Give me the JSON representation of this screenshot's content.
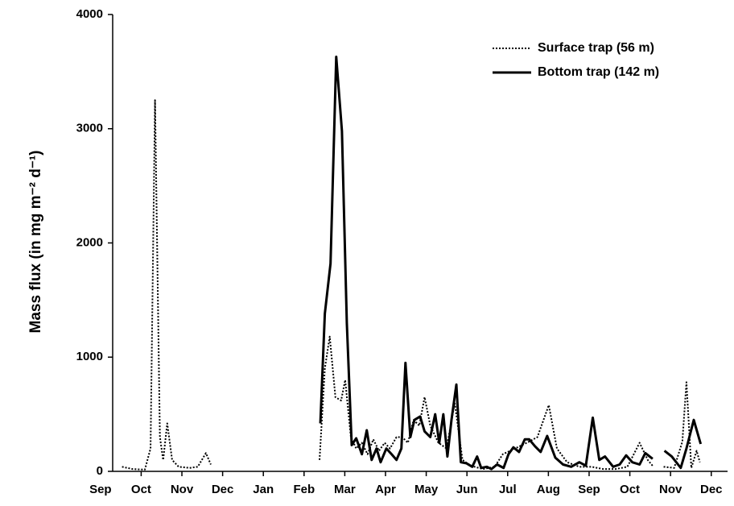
{
  "chart_data": {
    "type": "line",
    "ylabel": "Mass flux (in mg m⁻² d⁻¹)",
    "xlim": [
      0.3,
      15.4
    ],
    "xticks": [
      {
        "value": 0,
        "label": "Sep"
      },
      {
        "value": 1,
        "label": "Oct"
      },
      {
        "value": 2,
        "label": "Nov"
      },
      {
        "value": 3,
        "label": "Dec"
      },
      {
        "value": 4,
        "label": "Jan"
      },
      {
        "value": 5,
        "label": "Feb"
      },
      {
        "value": 6,
        "label": "Mar"
      },
      {
        "value": 7,
        "label": "Apr"
      },
      {
        "value": 8,
        "label": "May"
      },
      {
        "value": 9,
        "label": "Jun"
      },
      {
        "value": 10,
        "label": "Jul"
      },
      {
        "value": 11,
        "label": "Aug"
      },
      {
        "value": 12,
        "label": "Sep"
      },
      {
        "value": 13,
        "label": "Oct"
      },
      {
        "value": 14,
        "label": "Nov"
      },
      {
        "value": 15,
        "label": "Dec"
      }
    ],
    "ylim": [
      0,
      4000
    ],
    "yticks": [
      0,
      1000,
      2000,
      3000,
      4000
    ],
    "legend": "top-right",
    "series": [
      {
        "name": "Surface trap (56 m)",
        "color": "#000000",
        "style": "dotted",
        "x": [
          0.53,
          0.79,
          1.09,
          1.23,
          1.34,
          1.46,
          1.54,
          1.64,
          1.76,
          1.92,
          2.19,
          2.39,
          2.59,
          2.71,
          null,
          5.38,
          5.51,
          5.63,
          5.77,
          5.91,
          6.01,
          6.15,
          6.28,
          6.42,
          6.56,
          6.7,
          6.84,
          6.98,
          7.11,
          7.27,
          7.41,
          7.55,
          7.69,
          7.83,
          7.96,
          8.1,
          8.3,
          8.5,
          8.7,
          8.89,
          9.09,
          9.39,
          9.68,
          9.88,
          10.18,
          10.47,
          10.73,
          11.01,
          11.21,
          11.46,
          11.76,
          12.06,
          12.35,
          12.65,
          12.94,
          13.24,
          13.44,
          13.58,
          null,
          13.83,
          14.09,
          14.29,
          14.39,
          14.51,
          14.64,
          14.72
        ],
        "values": [
          40,
          20,
          15,
          200,
          3250,
          300,
          100,
          420,
          100,
          40,
          30,
          40,
          160,
          60,
          null,
          100,
          900,
          1180,
          650,
          620,
          800,
          300,
          200,
          250,
          150,
          280,
          180,
          250,
          200,
          300,
          300,
          250,
          450,
          400,
          650,
          400,
          250,
          200,
          600,
          100,
          50,
          20,
          40,
          150,
          200,
          250,
          300,
          580,
          200,
          80,
          40,
          40,
          20,
          20,
          40,
          250,
          100,
          40,
          null,
          40,
          30,
          260,
          780,
          30,
          180,
          80
        ]
      },
      {
        "name": "Bottom trap (142 m)",
        "color": "#000000",
        "style": "solid",
        "x": [
          5.4,
          5.51,
          5.65,
          5.79,
          5.93,
          6.05,
          6.17,
          6.28,
          6.42,
          6.54,
          6.66,
          6.78,
          6.88,
          7.02,
          7.15,
          7.27,
          7.39,
          7.49,
          7.61,
          7.71,
          7.85,
          7.96,
          8.1,
          8.22,
          8.32,
          8.42,
          8.52,
          8.62,
          8.74,
          8.85,
          8.99,
          9.13,
          9.25,
          9.35,
          9.49,
          9.6,
          9.74,
          9.9,
          10.02,
          10.14,
          10.28,
          10.42,
          10.53,
          10.67,
          10.81,
          10.97,
          11.17,
          11.36,
          11.56,
          11.76,
          11.92,
          12.09,
          12.25,
          12.39,
          12.59,
          12.75,
          12.91,
          13.06,
          13.24,
          13.38,
          13.56,
          null,
          13.85,
          14.03,
          14.25,
          14.39,
          14.57,
          14.74
        ],
        "values": [
          420,
          1380,
          1820,
          3630,
          2980,
          1300,
          230,
          290,
          150,
          360,
          100,
          200,
          80,
          200,
          150,
          100,
          200,
          950,
          300,
          450,
          480,
          350,
          300,
          500,
          250,
          500,
          130,
          450,
          760,
          80,
          70,
          40,
          130,
          30,
          40,
          20,
          60,
          30,
          150,
          210,
          170,
          280,
          280,
          220,
          170,
          310,
          120,
          60,
          40,
          80,
          50,
          470,
          100,
          130,
          40,
          60,
          140,
          80,
          60,
          160,
          110,
          null,
          180,
          130,
          30,
          200,
          450,
          240
        ]
      }
    ]
  }
}
